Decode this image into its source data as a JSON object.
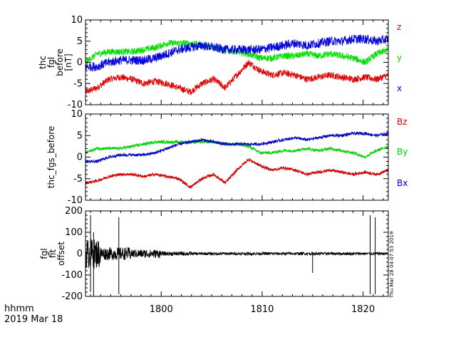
{
  "footer": {
    "line1": "hhmm",
    "line2": "2019 Mar 18"
  },
  "timestamp": "Thu Mar 28 04:07:53 2019",
  "chart_data": [
    {
      "type": "line",
      "ylabel_lines": [
        "thc",
        "fgl",
        "before",
        "[nT]"
      ],
      "ylim": [
        -10,
        10
      ],
      "yticks": [
        10,
        5,
        0,
        -5,
        -10
      ],
      "xlim": [
        1792.5,
        1822.5
      ],
      "xticks": [
        1800,
        1810,
        1820
      ],
      "legend_placement": "right",
      "series": [
        {
          "name": "z",
          "color": "#e00000",
          "base": [
            -7,
            -6,
            -4,
            -3.5,
            -4,
            -5,
            -4.5,
            -5,
            -6,
            -7,
            -5,
            -4,
            -6,
            -3,
            0,
            -2,
            -3,
            -2.5,
            -3,
            -4,
            -3.5,
            -3,
            -3.5,
            -4,
            -3.5,
            -4,
            -3
          ]
        },
        {
          "name": "y",
          "color": "#00e000",
          "base": [
            0,
            2,
            2.5,
            2.5,
            2.5,
            3,
            3.5,
            4.5,
            4.5,
            4.5,
            4,
            3.5,
            3,
            2.5,
            2,
            1,
            1,
            1.5,
            1.5,
            2,
            1.5,
            2,
            1.5,
            1,
            0,
            2,
            3
          ]
        },
        {
          "name": "x",
          "color": "#0000e0",
          "base": [
            -1,
            -1,
            0,
            0.5,
            0.5,
            0.5,
            1,
            2,
            3,
            3.5,
            4,
            3.5,
            3,
            3,
            3,
            3,
            3.5,
            4,
            4.5,
            4,
            4.5,
            5,
            5,
            5.5,
            5.5,
            5,
            5.5
          ]
        }
      ]
    },
    {
      "type": "line",
      "ylabel_lines": [
        "thc_fgs_before"
      ],
      "ylim": [
        -10,
        10
      ],
      "yticks": [
        10,
        5,
        0,
        -5,
        -10
      ],
      "xlim": [
        1792.5,
        1822.5
      ],
      "xticks": [
        1800,
        1810,
        1820
      ],
      "legend_placement": "right",
      "series": [
        {
          "name": "Bz",
          "color": "#d00000",
          "base": [
            -6,
            -5.5,
            -4.5,
            -4,
            -4,
            -4.5,
            -4,
            -4.5,
            -5,
            -7,
            -5,
            -4,
            -6,
            -3,
            -0.5,
            -2,
            -3,
            -2.5,
            -3,
            -4,
            -3.5,
            -3,
            -3.5,
            -4,
            -3.5,
            -4,
            -3
          ]
        },
        {
          "name": "By",
          "color": "#00d000",
          "base": [
            1,
            2,
            2,
            2,
            2.5,
            3,
            3.5,
            3.5,
            3.5,
            3.5,
            3.5,
            3.5,
            3,
            3,
            2.5,
            1,
            1,
            1.5,
            1.5,
            2,
            1.5,
            2,
            1.5,
            1,
            0,
            1.5,
            2.5
          ]
        },
        {
          "name": "Bx",
          "color": "#0000c0",
          "base": [
            -1,
            -1,
            0,
            0.5,
            0.5,
            0.5,
            1,
            2,
            3,
            3.5,
            4,
            3.5,
            3,
            3,
            3,
            3,
            3.5,
            4,
            4.5,
            4,
            4.5,
            5,
            5,
            5.5,
            5.5,
            5,
            5.5
          ]
        }
      ]
    },
    {
      "type": "line",
      "ylabel_lines": [
        "fgl",
        "fit",
        "offset"
      ],
      "ylim": [
        -200,
        200
      ],
      "yticks": [
        200,
        100,
        0,
        -100,
        -200
      ],
      "xlim": [
        1792.5,
        1822.5
      ],
      "xticks": [
        1800,
        1810,
        1820
      ],
      "series": [
        {
          "name": "",
          "color": "#000000",
          "base": [
            0,
            0,
            0,
            0,
            0,
            0,
            0,
            0,
            0,
            0,
            0,
            0,
            0,
            0,
            0,
            0,
            0,
            0,
            0,
            0,
            0,
            0,
            0,
            0,
            0,
            0,
            0
          ]
        }
      ],
      "spikes": [
        {
          "x": 1793.0,
          "from": -180,
          "to": 180
        },
        {
          "x": 1793.3,
          "from": -200,
          "to": 100
        },
        {
          "x": 1795.8,
          "from": -190,
          "to": 170
        },
        {
          "x": 1815.0,
          "from": -90,
          "to": 0
        },
        {
          "x": 1820.7,
          "from": -190,
          "to": 180
        },
        {
          "x": 1821.2,
          "from": -190,
          "to": 170
        }
      ]
    }
  ]
}
